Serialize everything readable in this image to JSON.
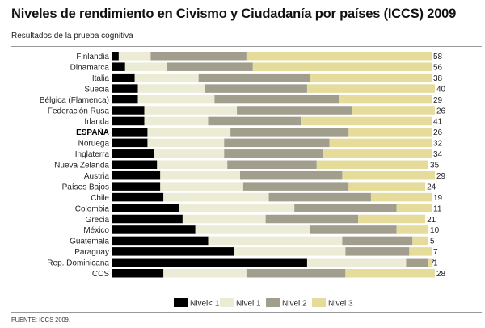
{
  "title": "Niveles de rendimiento en Civismo y Ciudadanía por países (ICCS) 2009",
  "subtitle": "Resultados de la prueba cognitiva",
  "source": "FUENTE: ICCS 2009.",
  "chart_data": {
    "type": "bar",
    "orientation": "horizontal",
    "stacked": true,
    "title": "Niveles de rendimiento en Civismo y Ciudadanía por países (ICCS) 2009",
    "xlabel": "",
    "ylabel": "",
    "xlim": [
      0,
      100
    ],
    "legend_position": "bottom",
    "categories": [
      "Finlandia",
      "Dinamarca",
      "Italia",
      "Suecia",
      "Bélgica (Flamenca)",
      "Federación Rusa",
      "Irlanda",
      "ESPAÑA",
      "Noruega",
      "Inglaterra",
      "Nueva Zelanda",
      "Austria",
      "Países Bajos",
      "Chile",
      "Colombia",
      "Grecia",
      "México",
      "Guatemala",
      "Paraguay",
      "Rep. Dominicana",
      "ICCS"
    ],
    "highlight": "ESPAÑA",
    "series": [
      {
        "name": "Nivel< 1",
        "color": "#000000",
        "values": [
          2,
          4,
          7,
          8,
          8,
          10,
          10,
          11,
          11,
          13,
          14,
          15,
          15,
          16,
          21,
          22,
          26,
          30,
          38,
          61,
          16
        ]
      },
      {
        "name": "Nivel 1",
        "color": "#ecebd5",
        "values": [
          10,
          13,
          20,
          21,
          24,
          29,
          20,
          26,
          24,
          22,
          22,
          25,
          26,
          33,
          36,
          26,
          36,
          42,
          35,
          31,
          26
        ]
      },
      {
        "name": "Nivel 2",
        "color": "#a19e8e",
        "values": [
          30,
          27,
          35,
          32,
          39,
          36,
          29,
          37,
          33,
          31,
          28,
          32,
          33,
          32,
          32,
          29,
          27,
          22,
          20,
          7,
          31
        ]
      },
      {
        "name": "Nivel 3",
        "color": "#e5dc9c",
        "values": [
          58,
          56,
          38,
          40,
          29,
          26,
          41,
          26,
          32,
          34,
          35,
          29,
          24,
          19,
          11,
          21,
          10,
          5,
          7,
          1,
          28
        ]
      }
    ]
  }
}
